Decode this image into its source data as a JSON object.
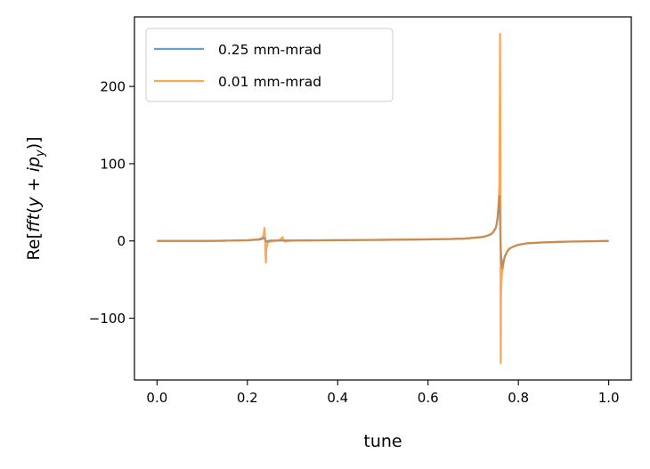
{
  "chart_data": {
    "type": "line",
    "title": "",
    "xlabel": "tune",
    "ylabel": "Re[fft(y + ip_y)]",
    "xlim": [
      -0.05,
      1.05
    ],
    "ylim": [
      -180,
      290
    ],
    "xticks": [
      0.0,
      0.2,
      0.4,
      0.6,
      0.8,
      1.0
    ],
    "xtick_labels": [
      "0.0",
      "0.2",
      "0.4",
      "0.6",
      "0.8",
      "1.0"
    ],
    "yticks": [
      -100,
      0,
      100,
      200
    ],
    "ytick_labels": [
      "−100",
      "0",
      "100",
      "200"
    ],
    "grid": false,
    "legend_position": "top-left",
    "series": [
      {
        "name": "0.25 mm-mrad",
        "color": "#1f77b4",
        "x": [
          0.0,
          0.05,
          0.1,
          0.15,
          0.2,
          0.23,
          0.238,
          0.242,
          0.25,
          0.3,
          0.35,
          0.4,
          0.45,
          0.5,
          0.55,
          0.6,
          0.65,
          0.68,
          0.7,
          0.72,
          0.73,
          0.74,
          0.745,
          0.75,
          0.752,
          0.754,
          0.756,
          0.758,
          0.759,
          0.76,
          0.761,
          0.762,
          0.764,
          0.766,
          0.768,
          0.77,
          0.775,
          0.78,
          0.79,
          0.8,
          0.82,
          0.85,
          0.9,
          0.95,
          1.0
        ],
        "y": [
          0,
          0,
          0,
          0.3,
          0.8,
          2,
          4,
          -1,
          0.5,
          0.6,
          0.8,
          1,
          1.2,
          1.4,
          1.7,
          2,
          2.5,
          3,
          4,
          5,
          6.5,
          9,
          12,
          17,
          22,
          30,
          45,
          58,
          40,
          10,
          -10,
          -22,
          -35,
          -30,
          -24,
          -20,
          -14,
          -10,
          -7,
          -5,
          -3,
          -2,
          -1,
          -0.5,
          0
        ]
      },
      {
        "name": "0.01 mm-mrad",
        "color": "#ff7f0e",
        "x": [
          0.0,
          0.05,
          0.1,
          0.15,
          0.2,
          0.225,
          0.232,
          0.236,
          0.238,
          0.239,
          0.24,
          0.241,
          0.242,
          0.245,
          0.25,
          0.26,
          0.27,
          0.275,
          0.278,
          0.28,
          0.283,
          0.29,
          0.3,
          0.35,
          0.4,
          0.45,
          0.5,
          0.55,
          0.6,
          0.65,
          0.68,
          0.7,
          0.72,
          0.73,
          0.74,
          0.745,
          0.75,
          0.752,
          0.754,
          0.756,
          0.758,
          0.7595,
          0.7602,
          0.7608,
          0.7615,
          0.763,
          0.766,
          0.768,
          0.77,
          0.775,
          0.78,
          0.79,
          0.8,
          0.82,
          0.85,
          0.9,
          0.95,
          1.0
        ],
        "y": [
          0,
          0,
          0,
          0.3,
          1,
          2,
          4,
          8,
          17,
          5,
          -15,
          -28,
          -10,
          -2,
          -1,
          0,
          1,
          3,
          5,
          1,
          -1,
          0,
          0.6,
          0.8,
          1,
          1.2,
          1.4,
          1.7,
          2,
          2.5,
          3,
          4,
          5,
          6.5,
          9,
          12,
          17,
          22,
          30,
          45,
          75,
          268,
          120,
          -158,
          -70,
          -45,
          -33,
          -26,
          -20,
          -14,
          -10,
          -7,
          -5,
          -3,
          -2,
          -1,
          -0.5,
          0
        ]
      }
    ]
  }
}
